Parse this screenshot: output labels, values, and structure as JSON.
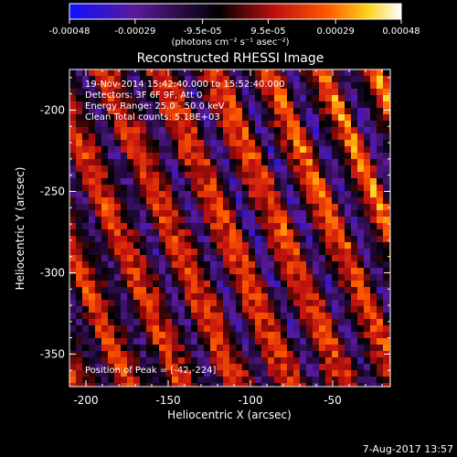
{
  "chart_data": {
    "type": "heatmap",
    "title": "Reconstructed RHESSI Image",
    "xlabel": "Heliocentric X (arcsec)",
    "ylabel": "Heliocentric Y (arcsec)",
    "xlim": [
      -210,
      -15
    ],
    "ylim": [
      -370,
      -175
    ],
    "x_ticks": [
      "-200",
      "-150",
      "-100",
      "-50"
    ],
    "x_tick_values": [
      -200,
      -150,
      -100,
      -50
    ],
    "y_ticks": [
      "-200",
      "-250",
      "-300",
      "-350"
    ],
    "y_tick_values": [
      -200,
      -250,
      -300,
      -350
    ],
    "colorbar": {
      "ticks": [
        "-0.00048",
        "-0.00029",
        "-9.5e-05",
        "9.5e-05",
        "0.00029",
        "0.00048"
      ],
      "tick_values": [
        -0.00048,
        -0.00029,
        -9.5e-05,
        9.5e-05,
        0.00029,
        0.00048
      ],
      "range": [
        -0.00048,
        0.00048
      ],
      "label": "(photons cm⁻² s⁻¹ asec⁻²)",
      "colors": [
        "#1010ff",
        "#5a1a9a",
        "#000000",
        "#c01010",
        "#ff5a00",
        "#ffd21a",
        "#ffffff"
      ]
    },
    "annotations": {
      "time": "19-Nov-2014 15:42:40.000 to 15:52:40.000",
      "detectors": "Detectors: 3F 6F 9F, Att 0",
      "energy": "Energy Range: 25.0 - 50.0 keV",
      "clean": "Clean     Total counts: 5.18E+03",
      "peak": "Position of Peak = [-42,-224]"
    },
    "peak_position": [
      -42,
      -224
    ],
    "pattern": "diagonal fringe stripes"
  },
  "footer": {
    "date": "7-Aug-2017 13:57"
  }
}
